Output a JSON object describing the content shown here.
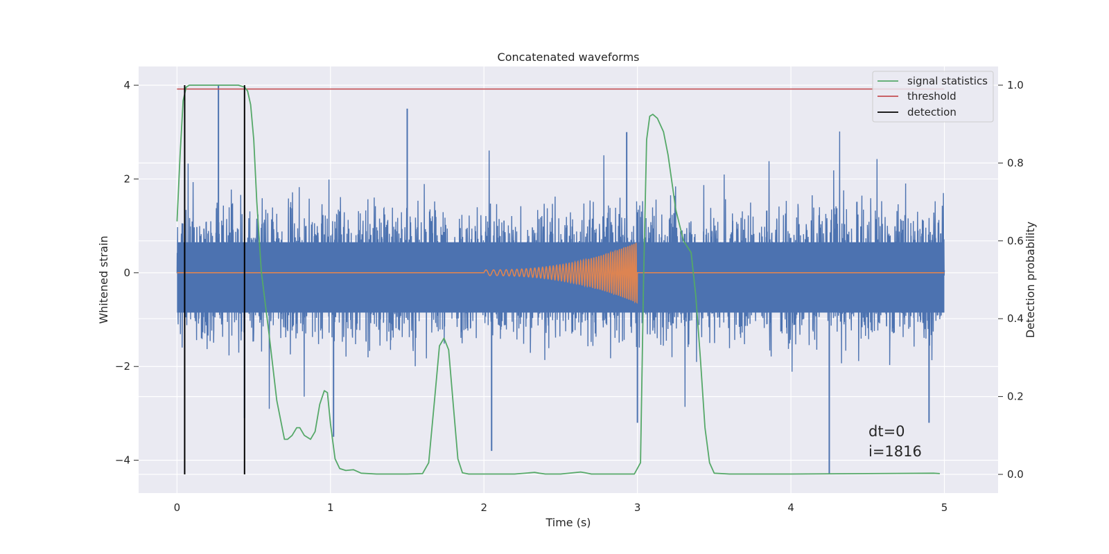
{
  "chart_data": {
    "type": "line",
    "title": "Concatenated waveforms",
    "xlabel": "Time (s)",
    "ylabel": "Whitened strain",
    "y2label": "Detection probability",
    "xlim": [
      -0.25,
      5.35
    ],
    "ylim": [
      -4.7,
      4.4
    ],
    "y2lim": [
      -0.048,
      1.048
    ],
    "xticks": [
      0,
      1,
      2,
      3,
      4,
      5
    ],
    "yticks": [
      -4,
      -2,
      0,
      2,
      4
    ],
    "y2ticks": [
      0.0,
      0.2,
      0.4,
      0.6,
      0.8,
      1.0
    ],
    "xtick_labels": [
      "0",
      "1",
      "2",
      "3",
      "4",
      "5"
    ],
    "ytick_labels": [
      "−4",
      "−2",
      "0",
      "2",
      "4"
    ],
    "y2tick_labels": [
      "0.0",
      "0.2",
      "0.4",
      "0.6",
      "0.8",
      "1.0"
    ],
    "grid": true,
    "legend_position": "top-right",
    "legend": [
      {
        "name": "signal statistics",
        "color": "#55a868"
      },
      {
        "name": "threshold",
        "color": "#c44e52"
      },
      {
        "name": "detection",
        "color": "#000000"
      }
    ],
    "annotations": [
      "dt=0",
      "i=1816"
    ],
    "colors": {
      "strain": "#4c72b0",
      "template": "#dd8452",
      "signal_statistics": "#55a868",
      "threshold": "#c44e52",
      "detection": "#000000",
      "plot_background": "#eaeaf2",
      "grid": "#ffffff"
    },
    "series": [
      {
        "id": "strain",
        "axis": "left",
        "description_x_range": [
          0,
          5
        ],
        "amplitude_core": 1.0,
        "peaks": [
          {
            "x": 0.27,
            "y": 4.0
          },
          {
            "x": 0.44,
            "y": -3.1
          },
          {
            "x": 1.02,
            "y": -3.5
          },
          {
            "x": 1.5,
            "y": 3.5
          },
          {
            "x": 2.05,
            "y": -3.8
          },
          {
            "x": 2.93,
            "y": 3.0
          },
          {
            "x": 3.0,
            "y": -3.2
          },
          {
            "x": 4.25,
            "y": -4.3
          },
          {
            "x": 4.9,
            "y": -3.2
          }
        ]
      },
      {
        "id": "template",
        "axis": "left",
        "chirp_start": 2.0,
        "chirp_end": 3.0,
        "max_amplitude": 0.65
      },
      {
        "id": "signal_statistics",
        "axis": "right",
        "x": [
          0.0,
          0.02,
          0.04,
          0.06,
          0.08,
          0.1,
          0.2,
          0.3,
          0.4,
          0.44,
          0.46,
          0.48,
          0.5,
          0.52,
          0.55,
          0.6,
          0.65,
          0.7,
          0.72,
          0.75,
          0.78,
          0.8,
          0.83,
          0.87,
          0.9,
          0.93,
          0.96,
          0.98,
          1.0,
          1.03,
          1.06,
          1.1,
          1.15,
          1.2,
          1.3,
          1.5,
          1.6,
          1.64,
          1.68,
          1.71,
          1.74,
          1.77,
          1.8,
          1.83,
          1.86,
          1.9,
          2.0,
          2.2,
          2.33,
          2.36,
          2.4,
          2.5,
          2.63,
          2.66,
          2.7,
          2.85,
          2.98,
          3.02,
          3.04,
          3.06,
          3.08,
          3.1,
          3.13,
          3.17,
          3.2,
          3.25,
          3.3,
          3.35,
          3.38,
          3.41,
          3.44,
          3.47,
          3.5,
          3.6,
          4.0,
          4.5,
          4.93,
          4.97
        ],
        "y": [
          0.65,
          0.82,
          0.96,
          0.995,
          1.0,
          1.0,
          1.0,
          1.0,
          1.0,
          0.995,
          0.985,
          0.95,
          0.86,
          0.7,
          0.52,
          0.36,
          0.19,
          0.09,
          0.09,
          0.1,
          0.12,
          0.12,
          0.1,
          0.09,
          0.11,
          0.18,
          0.215,
          0.21,
          0.13,
          0.04,
          0.015,
          0.01,
          0.012,
          0.003,
          0.001,
          0.001,
          0.002,
          0.03,
          0.2,
          0.33,
          0.35,
          0.32,
          0.18,
          0.04,
          0.004,
          0.001,
          0.001,
          0.001,
          0.005,
          0.003,
          0.001,
          0.001,
          0.006,
          0.004,
          0.001,
          0.001,
          0.001,
          0.03,
          0.5,
          0.86,
          0.92,
          0.925,
          0.915,
          0.88,
          0.82,
          0.68,
          0.6,
          0.57,
          0.46,
          0.3,
          0.12,
          0.03,
          0.003,
          0.001,
          0.001,
          0.002,
          0.003,
          0.002
        ]
      },
      {
        "id": "threshold",
        "axis": "right",
        "x": [
          0.0,
          5.0
        ],
        "y": [
          0.99,
          0.99
        ]
      },
      {
        "id": "detection",
        "axis": "right",
        "x": [
          0.05,
          0.44
        ],
        "y_range": [
          0,
          1
        ]
      }
    ]
  }
}
